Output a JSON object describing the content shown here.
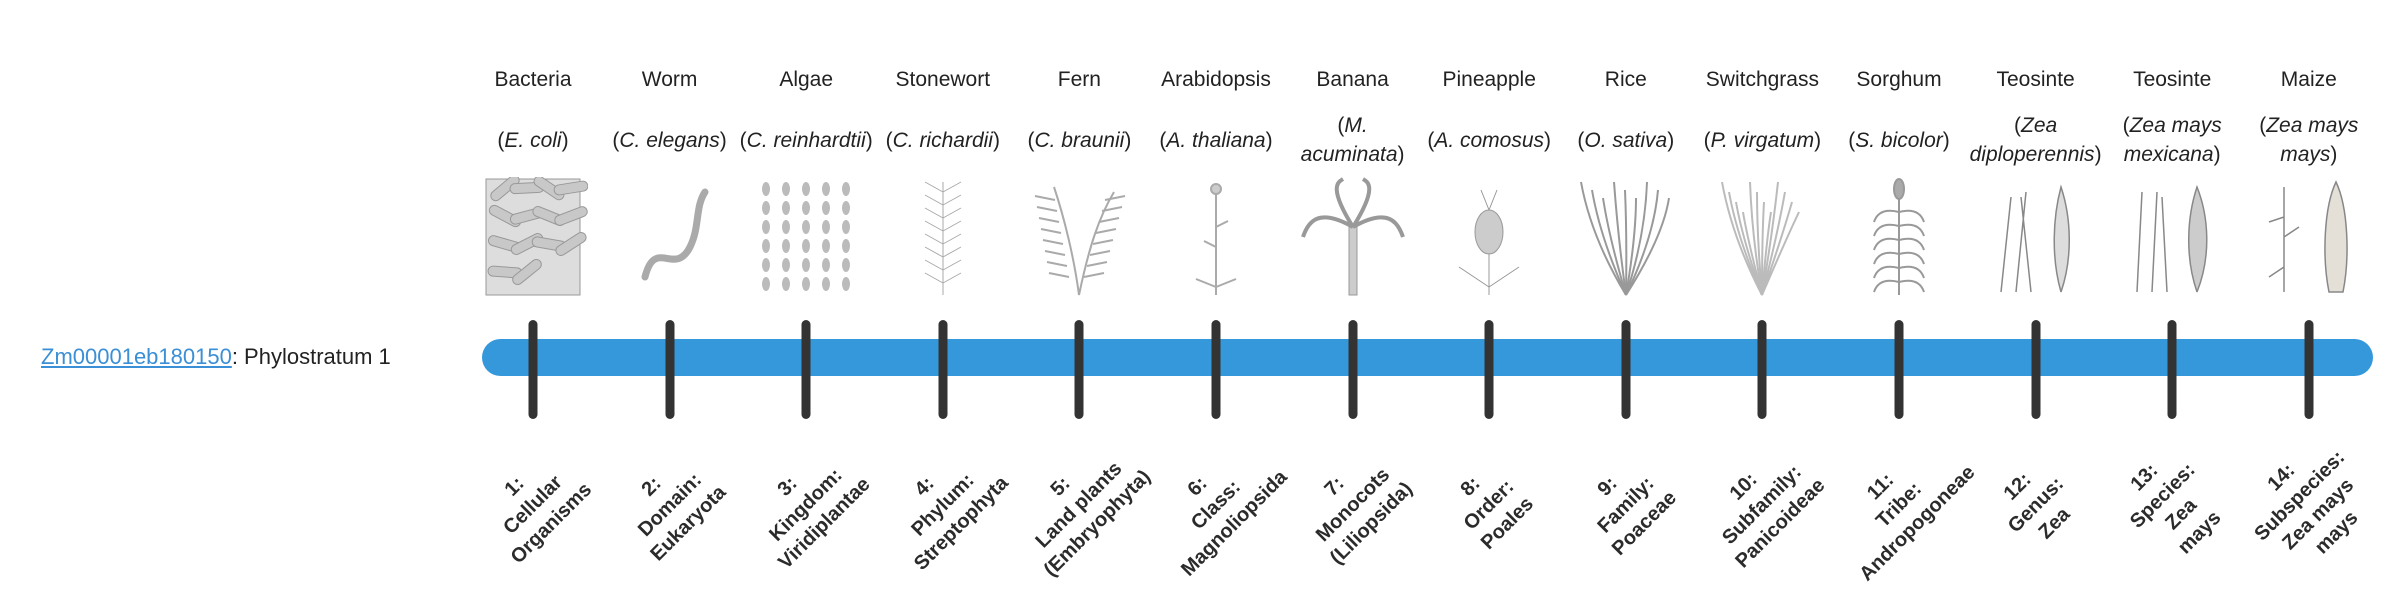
{
  "gene": {
    "id": "Zm00001eb180150",
    "suffix": ": Phylostratum 1"
  },
  "colors": {
    "bar": "#3498db",
    "tick": "#333333",
    "link": "#3a8fd6"
  },
  "strata": [
    {
      "common": "Bacteria",
      "latin": "E. coli",
      "icon": "bacteria-illustration",
      "label": [
        "1:",
        "Cellular",
        "Organisms"
      ]
    },
    {
      "common": "Worm",
      "latin": "C. elegans",
      "icon": "worm-illustration",
      "label": [
        "2:",
        "Domain:",
        "Eukaryota"
      ]
    },
    {
      "common": "Algae",
      "latin": "C. reinhardtii",
      "icon": "algae-illustration",
      "label": [
        "3:",
        "Kingdom:",
        "Viridiplantae"
      ]
    },
    {
      "common": "Stonewort",
      "latin": "C. richardii",
      "icon": "stonewort-illustration",
      "label": [
        "4:",
        "Phylum:",
        "Streptophyta"
      ]
    },
    {
      "common": "Fern",
      "latin": "C. braunii",
      "icon": "fern-illustration",
      "label": [
        "5:",
        "Land plants",
        "(Embryophyta)"
      ]
    },
    {
      "common": "Arabidopsis",
      "latin": "A. thaliana",
      "icon": "arabidopsis-illustration",
      "label": [
        "6:",
        "Class:",
        "Magnoliopsida"
      ]
    },
    {
      "common": "Banana",
      "latin": "M. acuminata",
      "icon": "banana-illustration",
      "label": [
        "7:",
        "Monocots",
        "(Liliopsida)"
      ]
    },
    {
      "common": "Pineapple",
      "latin": "A. comosus",
      "icon": "pineapple-illustration",
      "label": [
        "8:",
        "Order:",
        "Poales"
      ]
    },
    {
      "common": "Rice",
      "latin": "O. sativa",
      "icon": "rice-illustration",
      "label": [
        "9:",
        "Family:",
        "Poaceae"
      ]
    },
    {
      "common": "Switchgrass",
      "latin": "P. virgatum",
      "icon": "switchgrass-illustration",
      "label": [
        "10:",
        "Subfamily:",
        "Panicoideae"
      ]
    },
    {
      "common": "Sorghum",
      "latin": "S. bicolor",
      "icon": "sorghum-illustration",
      "label": [
        "11:",
        "Tribe:",
        "Andropogoneae"
      ]
    },
    {
      "common": "Teosinte",
      "latin": "Zea diploperennis",
      "icon": "teosinte-illustration",
      "label": [
        "12:",
        "Genus:",
        "Zea"
      ]
    },
    {
      "common": "Teosinte",
      "latin": "Zea mays mexicana",
      "icon": "teosinte-mexicana-illustration",
      "label": [
        "13:",
        "Species:",
        "Zea",
        "mays"
      ]
    },
    {
      "common": "Maize",
      "latin": "Zea mays mays",
      "icon": "maize-illustration",
      "label": [
        "14:",
        "Subspecies:",
        "Zea mays",
        "mays"
      ]
    }
  ]
}
